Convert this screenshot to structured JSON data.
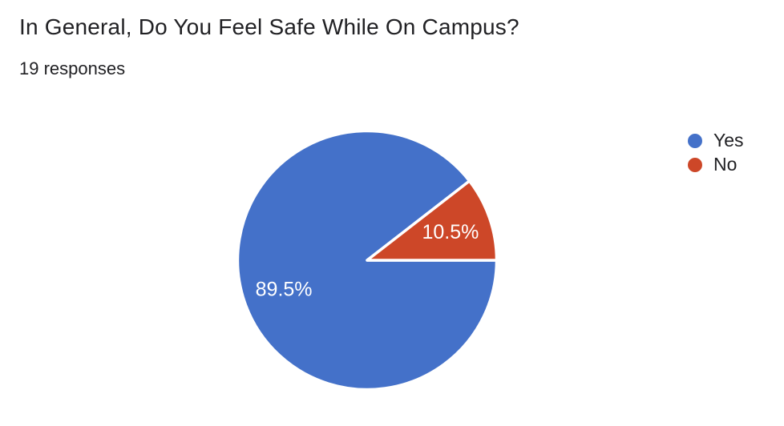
{
  "header": {
    "title": "In General, Do You Feel Safe While On Campus?",
    "responses_label": "19 responses"
  },
  "chart_data": {
    "type": "pie",
    "title": "In General, Do You Feel Safe While On Campus?",
    "subtitle": "19 responses",
    "total_responses": 19,
    "categories": [
      "Yes",
      "No"
    ],
    "values": [
      17,
      2
    ],
    "percentages": [
      89.5,
      10.5
    ],
    "slice_labels": [
      "89.5%",
      "10.5%"
    ],
    "colors": [
      "#4471c9",
      "#cd4728"
    ],
    "slice_label_color": "#ffffff",
    "slice_border_color": "#ffffff",
    "legend_position": "right",
    "start_angle_deg": 0,
    "direction": "clockwise"
  },
  "legend": {
    "items": [
      {
        "label": "Yes",
        "color": "#4471c9"
      },
      {
        "label": "No",
        "color": "#cd4728"
      }
    ]
  }
}
